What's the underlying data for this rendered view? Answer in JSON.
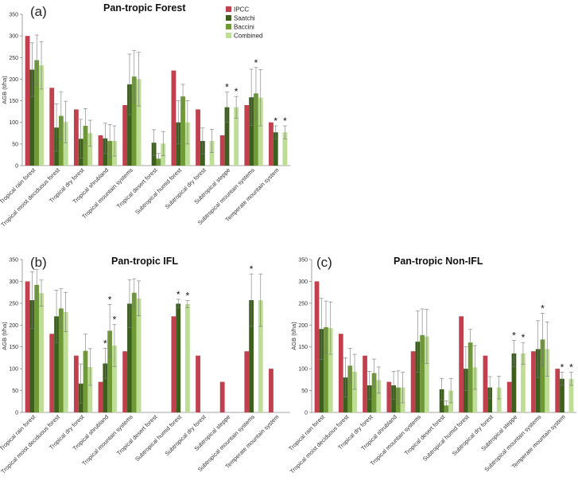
{
  "categories": [
    "Tropical rain forest",
    "Tropical moist deciduous forest",
    "Tropical dry forest",
    "Tropical shrubland",
    "Tropical mountain systems",
    "Tropical desert forest",
    "Subtropical humid forest",
    "Subtropical dry forest",
    "Subtropical steppe",
    "Subtropical mountain systems",
    "Temperate mountain system"
  ],
  "legend": [
    {
      "name": "IPCC",
      "color": "#C0404E"
    },
    {
      "name": "Saatchi",
      "color": "#3D5F1E"
    },
    {
      "name": "Baccini",
      "color": "#6F9A35"
    },
    {
      "name": "Combined",
      "color": "#BEDD96"
    }
  ],
  "ylabel": "AGB (t/ha)",
  "chart_data": [
    {
      "type": "bar",
      "panel": "(a)",
      "title": "Pan-tropic Forest",
      "ylabel": "AGB (t/ha)",
      "ylim": [
        0,
        350
      ],
      "yticks": [
        0,
        50,
        100,
        150,
        200,
        250,
        300,
        350
      ],
      "categories": [
        "Tropical rain forest",
        "Tropical moist deciduous forest",
        "Tropical dry forest",
        "Tropical shrubland",
        "Tropical mountain systems",
        "Tropical desert forest",
        "Subtropical humid forest",
        "Subtropical dry forest",
        "Subtropical steppe",
        "Subtropical mountain systems",
        "Temperate mountain system"
      ],
      "series": [
        {
          "name": "IPCC",
          "values": [
            300,
            180,
            130,
            70,
            140,
            null,
            220,
            130,
            70,
            140,
            100
          ],
          "errors": [
            null,
            null,
            null,
            null,
            null,
            null,
            null,
            null,
            null,
            null,
            null
          ]
        },
        {
          "name": "Saatchi",
          "values": [
            222,
            88,
            62,
            63,
            188,
            53,
            100,
            57,
            135,
            158,
            77
          ],
          "errors": [
            62,
            55,
            45,
            35,
            70,
            30,
            50,
            30,
            35,
            65,
            15
          ]
        },
        {
          "name": "Baccini",
          "values": [
            244,
            115,
            92,
            57,
            206,
            16,
            160,
            null,
            null,
            167,
            null
          ],
          "errors": [
            58,
            55,
            40,
            38,
            60,
            12,
            28,
            null,
            null,
            60,
            null
          ]
        },
        {
          "name": "Combined",
          "values": [
            232,
            101,
            75,
            57,
            200,
            51,
            100,
            57,
            135,
            157,
            77
          ],
          "errors": [
            55,
            48,
            30,
            35,
            62,
            28,
            50,
            27,
            25,
            65,
            15
          ]
        }
      ],
      "stars": [
        {
          "category": "Subtropical steppe",
          "series": [
            "Saatchi",
            "Combined"
          ]
        },
        {
          "category": "Subtropical mountain systems",
          "series": [
            "Baccini"
          ]
        },
        {
          "category": "Temperate mountain system",
          "series": [
            "Saatchi",
            "Combined"
          ]
        }
      ],
      "star_symbol": "*"
    },
    {
      "type": "bar",
      "panel": "(b)",
      "title": "Pan-tropic IFL",
      "ylabel": "AGB (t/ha)",
      "ylim": [
        0,
        350
      ],
      "yticks": [
        0,
        50,
        100,
        150,
        200,
        250,
        300,
        350
      ],
      "categories": [
        "Tropical rain forest",
        "Tropical moist deciduous forest",
        "Tropical dry forest",
        "Tropical shrubland",
        "Tropical mountain systems",
        "Tropical desert forest",
        "Subtropical humid forest",
        "Subtropical dry forest",
        "Subtropical steppe",
        "Subtropical mountain systems",
        "Temperate mountain system"
      ],
      "series": [
        {
          "name": "IPCC",
          "values": [
            300,
            180,
            130,
            70,
            140,
            null,
            220,
            130,
            70,
            140,
            100
          ],
          "errors": [
            null,
            null,
            null,
            null,
            null,
            null,
            null,
            null,
            null,
            null,
            null
          ]
        },
        {
          "name": "Saatchi",
          "values": [
            257,
            220,
            66,
            112,
            249,
            null,
            249,
            null,
            null,
            257,
            null
          ],
          "errors": [
            65,
            60,
            45,
            35,
            55,
            null,
            10,
            null,
            null,
            60,
            null
          ]
        },
        {
          "name": "Baccini",
          "values": [
            292,
            238,
            141,
            187,
            274,
            null,
            null,
            null,
            null,
            null,
            null
          ],
          "errors": [
            35,
            45,
            38,
            60,
            32,
            null,
            null,
            null,
            null,
            null,
            null
          ]
        },
        {
          "name": "Combined",
          "values": [
            273,
            230,
            104,
            153,
            261,
            null,
            248,
            null,
            null,
            257,
            null
          ],
          "errors": [
            30,
            45,
            42,
            48,
            40,
            null,
            8,
            null,
            null,
            60,
            null
          ]
        }
      ],
      "stars": [
        {
          "category": "Tropical shrubland",
          "series": [
            "Saatchi",
            "Baccini",
            "Combined"
          ]
        },
        {
          "category": "Subtropical humid forest",
          "series": [
            "Saatchi",
            "Combined"
          ]
        },
        {
          "category": "Subtropical mountain systems",
          "series": [
            "Saatchi"
          ]
        }
      ],
      "star_symbol": "*"
    },
    {
      "type": "bar",
      "panel": "(c)",
      "title": "Pan-tropic Non-IFL",
      "ylabel": "AGB (t/ha)",
      "ylim": [
        0,
        350
      ],
      "yticks": [
        0,
        50,
        100,
        150,
        200,
        250,
        300,
        350
      ],
      "categories": [
        "Tropical rain forest",
        "Tropical moist deciduous forest",
        "Tropical dry forest",
        "Tropical shrubland",
        "Tropical mountain systems",
        "Tropical desert forest",
        "Subtropical humid forest",
        "Subtropical dry forest",
        "Subtropical steppe",
        "Subtropical mountain systems",
        "Temperate mountain system"
      ],
      "series": [
        {
          "name": "IPCC",
          "values": [
            300,
            180,
            130,
            70,
            140,
            null,
            220,
            130,
            70,
            140,
            100
          ],
          "errors": [
            null,
            null,
            null,
            null,
            null,
            null,
            null,
            null,
            null,
            null,
            null
          ]
        },
        {
          "name": "Saatchi",
          "values": [
            191,
            80,
            62,
            62,
            162,
            53,
            100,
            57,
            135,
            145,
            77
          ],
          "errors": [
            70,
            45,
            32,
            32,
            70,
            25,
            50,
            25,
            30,
            65,
            15
          ]
        },
        {
          "name": "Baccini",
          "values": [
            195,
            107,
            90,
            57,
            177,
            16,
            160,
            null,
            null,
            167,
            null
          ],
          "errors": [
            60,
            40,
            32,
            38,
            60,
            10,
            30,
            null,
            null,
            60,
            null
          ]
        },
        {
          "name": "Combined",
          "values": [
            193,
            93,
            74,
            57,
            174,
            50,
            103,
            57,
            135,
            145,
            77
          ],
          "errors": [
            60,
            40,
            30,
            35,
            62,
            28,
            50,
            26,
            25,
            62,
            15
          ]
        }
      ],
      "stars": [
        {
          "category": "Subtropical steppe",
          "series": [
            "Saatchi",
            "Combined"
          ]
        },
        {
          "category": "Subtropical mountain systems",
          "series": [
            "Baccini"
          ]
        },
        {
          "category": "Temperate mountain system",
          "series": [
            "Saatchi",
            "Combined"
          ]
        }
      ],
      "star_symbol": "*"
    }
  ]
}
